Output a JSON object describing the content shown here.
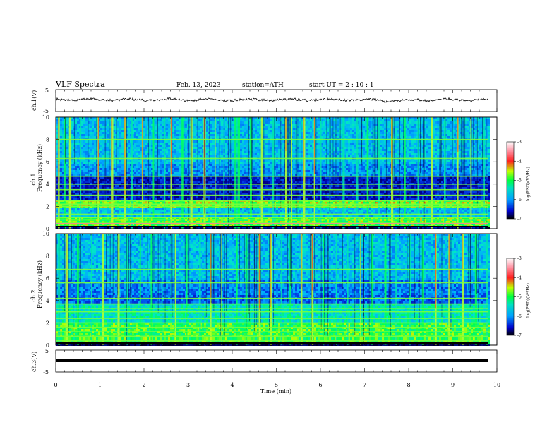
{
  "header": {
    "title": "VLF  Spectra",
    "date": "Feb. 13, 2023",
    "station": "station=ATH",
    "start": "start  UT  =   2  : 10 : 1"
  },
  "chart_data": {
    "type": "heatmap",
    "xlabel": "Time  (min)",
    "xlim": [
      0,
      10
    ],
    "x_ticks": [
      "0",
      "1",
      "2",
      "3",
      "4",
      "5",
      "6",
      "7",
      "8",
      "9",
      "10"
    ],
    "panels": [
      {
        "id": "ch1-waveform",
        "type": "line",
        "ylabel": "ch.1(V)",
        "ylim": [
          -5,
          5
        ],
        "y_ticks": [
          "5",
          "-5"
        ],
        "data_end_min": 9.8
      },
      {
        "id": "ch1-spectrogram",
        "type": "heatmap",
        "ylabel_top": "ch.1",
        "ylabel": "Frequency  (kHz)",
        "ylim": [
          0,
          10
        ],
        "y_ticks": [
          "0",
          "2",
          "4",
          "6",
          "8",
          "10"
        ],
        "data_end_min": 9.8,
        "horizontal_bands_khz": [
          0.5,
          0.8,
          1.0,
          1.3,
          2.0,
          2.2,
          2.5,
          3.0,
          3.5,
          4.0,
          4.7,
          6.3,
          8.0
        ],
        "vertical_bursts_min": [
          0.05,
          0.18,
          0.3,
          0.55,
          0.95,
          1.25,
          1.55,
          1.7,
          1.95,
          2.2,
          2.45,
          2.6,
          2.85,
          3.05,
          3.35,
          3.6,
          3.8,
          4.05,
          4.12,
          4.4,
          4.65,
          4.9,
          5.2,
          5.33,
          5.6,
          5.85,
          6.0,
          6.2,
          6.5,
          6.8,
          7.05,
          7.3,
          7.6,
          7.9,
          8.2,
          8.5,
          8.8,
          9.1,
          9.4,
          9.7
        ]
      },
      {
        "id": "ch2-spectrogram",
        "type": "heatmap",
        "ylabel_top": "ch.2",
        "ylabel": "Frequency  (kHz)",
        "ylim": [
          0,
          10
        ],
        "y_ticks": [
          "0",
          "2",
          "4",
          "6",
          "8",
          "10"
        ],
        "data_end_min": 9.8,
        "horizontal_bands_khz": [
          0.4,
          0.8,
          1.2,
          1.6,
          2.0,
          2.4,
          3.0,
          3.3,
          3.7,
          4.2,
          5.6,
          6.8
        ],
        "vertical_bursts_min": [
          0.05,
          0.22,
          0.48,
          0.8,
          1.05,
          1.4,
          1.6,
          1.9,
          2.15,
          2.4,
          2.7,
          2.95,
          3.25,
          3.5,
          3.75,
          4.08,
          4.3,
          4.6,
          4.85,
          5.1,
          5.3,
          5.55,
          5.8,
          6.05,
          6.35,
          6.6,
          6.9,
          7.15,
          7.45,
          7.7,
          8.0,
          8.3,
          8.6,
          8.9,
          9.2,
          9.5,
          9.75
        ]
      },
      {
        "id": "ch3-waveform",
        "type": "line",
        "ylabel": "ch.3(V)",
        "ylim": [
          -5,
          5
        ],
        "y_ticks": [
          "5",
          "-5"
        ],
        "data_end_min": 9.8
      }
    ],
    "colorbars": [
      {
        "label": "log(PSD)(V²/Hz)",
        "range": [
          -7,
          -3
        ],
        "ticks": [
          "-3",
          "-4",
          "-5",
          "-6",
          "-7"
        ],
        "colors": [
          "#000000",
          "#0000cc",
          "#00a0ff",
          "#00e0c0",
          "#00ff40",
          "#c0ff00",
          "#ff2020",
          "#ff90a0",
          "#ffffff"
        ]
      },
      {
        "label": "log(PSD)(V²/Hz)",
        "range": [
          -7,
          -3
        ],
        "ticks": [
          "-3",
          "-4",
          "-5",
          "-6",
          "-7"
        ],
        "colors": [
          "#000000",
          "#0000cc",
          "#00a0ff",
          "#00e0c0",
          "#00ff40",
          "#c0ff00",
          "#ff2020",
          "#ff90a0",
          "#ffffff"
        ]
      }
    ]
  }
}
